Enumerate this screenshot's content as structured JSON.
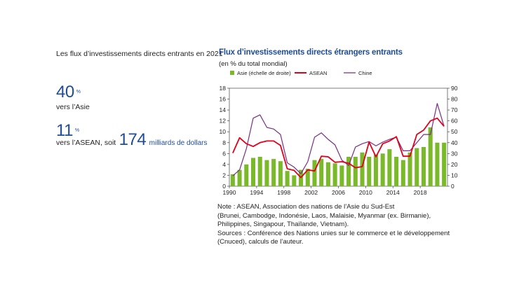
{
  "kpis": {
    "heading": "Les flux d’investissements directs entrants en 2021",
    "asia": {
      "value": "40",
      "unit": "%",
      "label": "vers l’Asie"
    },
    "asean": {
      "value": "11",
      "unit": "%",
      "label": "vers l’ASEAN, soit",
      "amount": "174",
      "amount_label": "milliards de dollars"
    }
  },
  "colors": {
    "asie": "#7ab929",
    "asean": "#e2001a",
    "chine": "#7b2c87",
    "title": "#1f4e96"
  },
  "chart_data": {
    "type": "bar+line",
    "title": "Flux d’investissements directs étrangers entrants",
    "subtitle": "(en % du total mondial)",
    "x": [
      1990,
      1991,
      1992,
      1993,
      1994,
      1995,
      1996,
      1997,
      1998,
      1999,
      2000,
      2001,
      2002,
      2003,
      2004,
      2005,
      2006,
      2007,
      2008,
      2009,
      2010,
      2011,
      2012,
      2013,
      2014,
      2015,
      2016,
      2017,
      2018,
      2019,
      2020,
      2021
    ],
    "x_ticks": [
      "1990",
      "1994",
      "1998",
      "2002",
      "2006",
      "2010",
      "2014",
      "2018"
    ],
    "y_left": {
      "ticks": [
        "0",
        "2",
        "4",
        "6",
        "8",
        "10",
        "12",
        "14",
        "16",
        "18"
      ],
      "lim": [
        0,
        18
      ]
    },
    "y_right": {
      "ticks": [
        "0",
        "10",
        "20",
        "30",
        "40",
        "50",
        "60",
        "70",
        "80",
        "90"
      ],
      "lim": [
        0,
        90
      ]
    },
    "grid": false,
    "legend_position": "top",
    "series": [
      {
        "name": "Asie (échelle de droite)",
        "type": "bar",
        "axis": "right",
        "values": [
          11,
          15,
          20,
          26,
          27,
          24,
          25,
          23,
          14,
          10,
          15,
          16,
          24,
          25,
          22,
          21,
          19,
          27,
          27,
          31,
          27,
          29,
          30,
          34,
          27,
          24,
          31,
          35,
          36,
          54,
          40,
          40
        ]
      },
      {
        "name": "ASEAN",
        "type": "line",
        "axis": "left",
        "values": [
          6.1,
          8.9,
          7.8,
          7.3,
          8.0,
          8.3,
          8.3,
          7.5,
          3.2,
          2.9,
          1.6,
          3.0,
          2.8,
          5.5,
          5.4,
          4.4,
          4.5,
          4.2,
          3.4,
          3.6,
          8.1,
          5.4,
          7.8,
          8.3,
          9.1,
          5.5,
          5.5,
          9.5,
          10.3,
          12.0,
          12.5,
          11.0
        ]
      },
      {
        "name": "Chine",
        "type": "line",
        "axis": "left",
        "values": [
          1.9,
          3.0,
          6.9,
          12.5,
          13.1,
          10.8,
          10.5,
          9.5,
          4.3,
          3.5,
          2.3,
          4.5,
          9.0,
          9.8,
          8.6,
          7.6,
          4.8,
          3.8,
          7.2,
          7.8,
          8.2,
          7.4,
          8.1,
          8.6,
          9.0,
          6.5,
          6.5,
          8.0,
          9.5,
          9.5,
          15.2,
          11.0
        ]
      }
    ]
  },
  "notes": {
    "note_lines": [
      "Note : ASEAN, Association des nations de l’Asie du Sud-Est",
      "(Brunei, Cambodge, Indonésie, Laos, Malaisie, Myanmar (ex. Birmanie),",
      "Philippines, Singapour, Thaïlande, Vietnam)."
    ],
    "source_lines": [
      "Sources : Conférence des Nations unies sur le commerce et le développement",
      "(Cnuced), calculs de l’auteur."
    ]
  }
}
